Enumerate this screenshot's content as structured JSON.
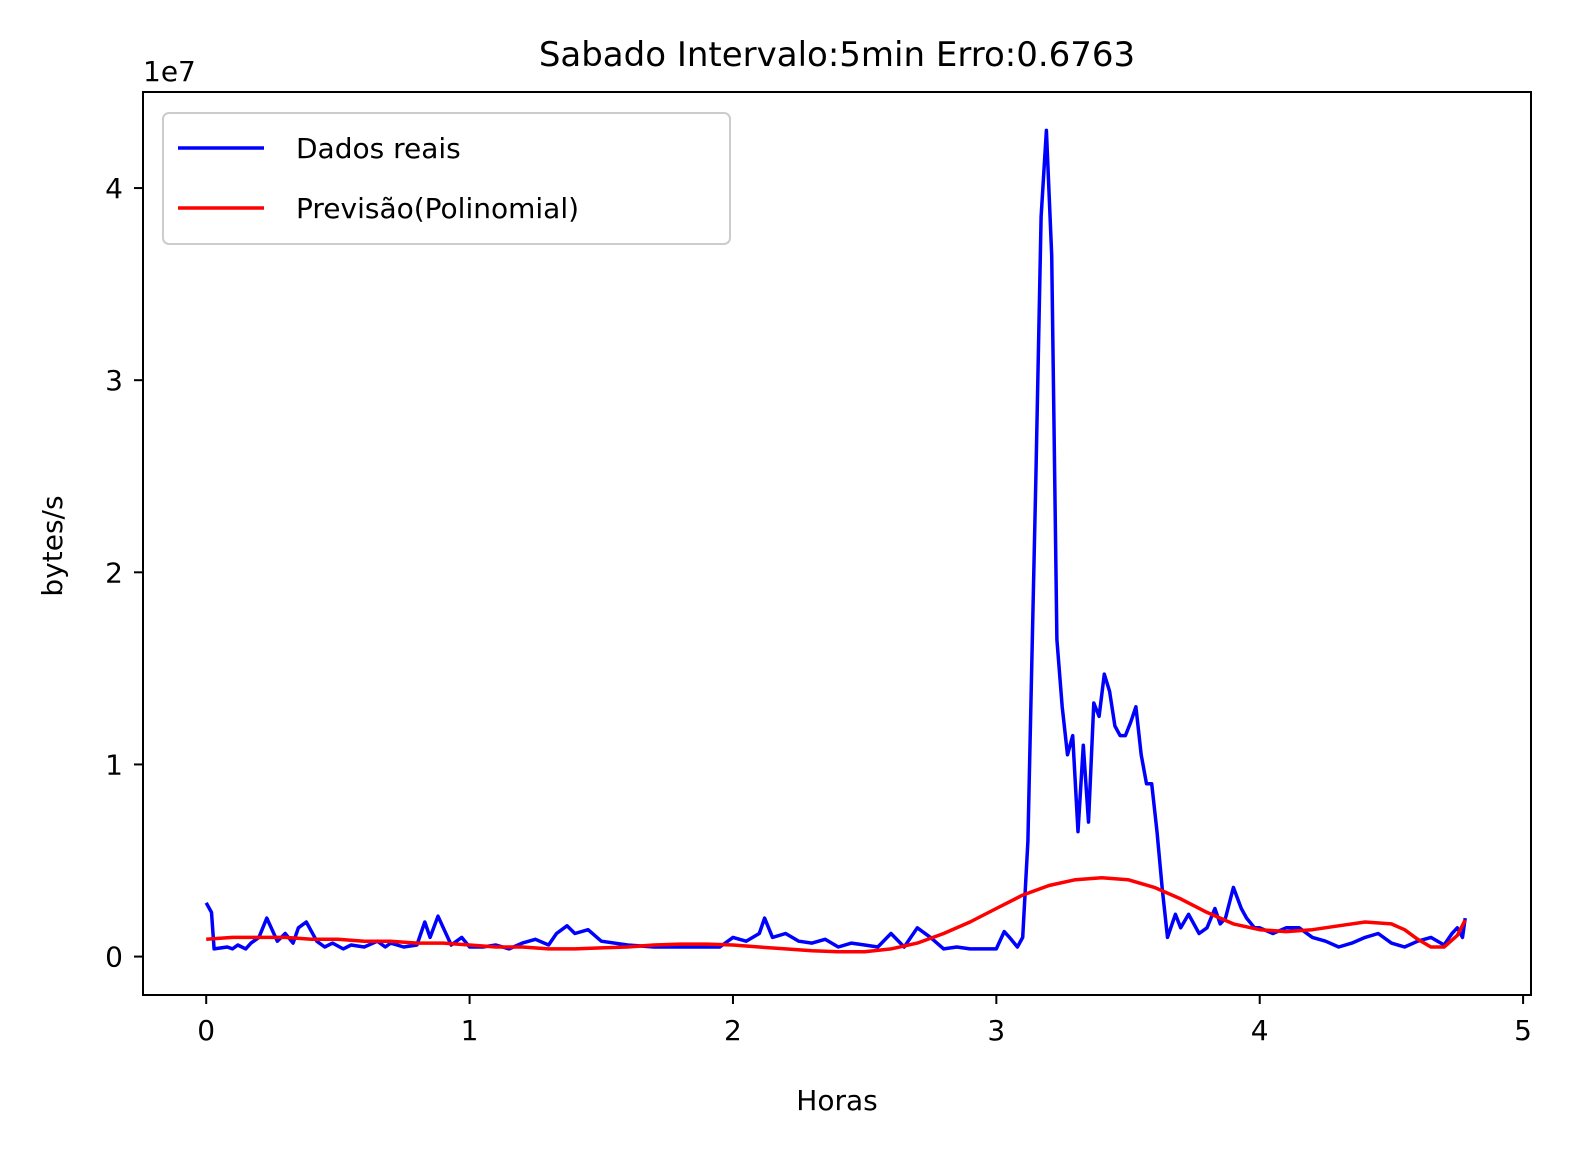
{
  "chart_data": {
    "type": "line",
    "title": "Sabado Intervalo:5min Erro:0.6763",
    "xlabel": "Horas",
    "ylabel": "bytes/s",
    "y_offset_label": "1e7",
    "y_scale": 10000000,
    "xlim": [
      -0.24,
      5.03
    ],
    "ylim": [
      -0.2,
      4.5
    ],
    "xticks": [
      0,
      1,
      2,
      3,
      4,
      5
    ],
    "yticks": [
      0,
      1,
      2,
      3,
      4
    ],
    "grid": false,
    "legend_position": "top-left",
    "series": [
      {
        "name": "Dados reais",
        "color": "#0000ff",
        "x": [
          0.0,
          0.02,
          0.03,
          0.08,
          0.1,
          0.12,
          0.15,
          0.17,
          0.2,
          0.23,
          0.27,
          0.3,
          0.33,
          0.35,
          0.38,
          0.42,
          0.45,
          0.48,
          0.52,
          0.55,
          0.6,
          0.65,
          0.68,
          0.7,
          0.75,
          0.8,
          0.83,
          0.85,
          0.88,
          0.9,
          0.93,
          0.97,
          1.0,
          1.05,
          1.1,
          1.15,
          1.2,
          1.25,
          1.3,
          1.33,
          1.37,
          1.4,
          1.45,
          1.5,
          1.6,
          1.7,
          1.8,
          1.9,
          1.95,
          2.0,
          2.05,
          2.1,
          2.12,
          2.15,
          2.2,
          2.25,
          2.3,
          2.35,
          2.4,
          2.45,
          2.5,
          2.55,
          2.6,
          2.65,
          2.7,
          2.75,
          2.8,
          2.85,
          2.9,
          2.95,
          3.0,
          3.03,
          3.05,
          3.08,
          3.1,
          3.12,
          3.15,
          3.17,
          3.19,
          3.21,
          3.23,
          3.25,
          3.27,
          3.29,
          3.31,
          3.33,
          3.35,
          3.37,
          3.39,
          3.41,
          3.43,
          3.45,
          3.47,
          3.49,
          3.51,
          3.53,
          3.55,
          3.57,
          3.59,
          3.61,
          3.63,
          3.65,
          3.68,
          3.7,
          3.73,
          3.77,
          3.8,
          3.83,
          3.85,
          3.87,
          3.9,
          3.93,
          3.95,
          3.98,
          4.0,
          4.05,
          4.1,
          4.15,
          4.2,
          4.25,
          4.3,
          4.35,
          4.4,
          4.45,
          4.5,
          4.55,
          4.6,
          4.65,
          4.7,
          4.73,
          4.75,
          4.77,
          4.78
        ],
        "values": [
          0.28,
          0.23,
          0.04,
          0.05,
          0.04,
          0.06,
          0.04,
          0.07,
          0.1,
          0.2,
          0.08,
          0.12,
          0.07,
          0.15,
          0.18,
          0.08,
          0.05,
          0.07,
          0.04,
          0.06,
          0.05,
          0.08,
          0.05,
          0.07,
          0.05,
          0.06,
          0.18,
          0.1,
          0.21,
          0.15,
          0.06,
          0.1,
          0.05,
          0.05,
          0.06,
          0.04,
          0.07,
          0.09,
          0.06,
          0.12,
          0.16,
          0.12,
          0.14,
          0.08,
          0.06,
          0.05,
          0.05,
          0.05,
          0.05,
          0.1,
          0.08,
          0.12,
          0.2,
          0.1,
          0.12,
          0.08,
          0.07,
          0.09,
          0.05,
          0.07,
          0.06,
          0.05,
          0.12,
          0.05,
          0.15,
          0.1,
          0.04,
          0.05,
          0.04,
          0.04,
          0.04,
          0.13,
          0.1,
          0.05,
          0.1,
          0.6,
          2.5,
          3.85,
          4.3,
          3.65,
          1.65,
          1.3,
          1.05,
          1.15,
          0.65,
          1.1,
          0.7,
          1.32,
          1.25,
          1.47,
          1.38,
          1.2,
          1.15,
          1.15,
          1.22,
          1.3,
          1.05,
          0.9,
          0.9,
          0.65,
          0.35,
          0.1,
          0.22,
          0.15,
          0.22,
          0.12,
          0.15,
          0.25,
          0.17,
          0.2,
          0.36,
          0.25,
          0.2,
          0.15,
          0.15,
          0.12,
          0.15,
          0.15,
          0.1,
          0.08,
          0.05,
          0.07,
          0.1,
          0.12,
          0.07,
          0.05,
          0.08,
          0.1,
          0.06,
          0.12,
          0.15,
          0.1,
          0.2
        ]
      },
      {
        "name": "Previsão(Polinomial)",
        "color": "#ff0000",
        "x": [
          0.0,
          0.1,
          0.2,
          0.3,
          0.4,
          0.5,
          0.6,
          0.7,
          0.8,
          0.9,
          1.0,
          1.1,
          1.2,
          1.3,
          1.4,
          1.5,
          1.6,
          1.7,
          1.8,
          1.9,
          2.0,
          2.1,
          2.2,
          2.3,
          2.4,
          2.5,
          2.6,
          2.7,
          2.8,
          2.9,
          3.0,
          3.1,
          3.2,
          3.3,
          3.4,
          3.5,
          3.6,
          3.7,
          3.8,
          3.9,
          4.0,
          4.1,
          4.2,
          4.3,
          4.4,
          4.5,
          4.55,
          4.6,
          4.65,
          4.7,
          4.75,
          4.78
        ],
        "values": [
          0.09,
          0.1,
          0.1,
          0.1,
          0.09,
          0.09,
          0.08,
          0.08,
          0.07,
          0.07,
          0.06,
          0.05,
          0.05,
          0.04,
          0.04,
          0.045,
          0.05,
          0.06,
          0.065,
          0.065,
          0.06,
          0.05,
          0.04,
          0.03,
          0.025,
          0.025,
          0.04,
          0.07,
          0.12,
          0.18,
          0.25,
          0.32,
          0.37,
          0.4,
          0.41,
          0.4,
          0.36,
          0.3,
          0.23,
          0.17,
          0.14,
          0.13,
          0.14,
          0.16,
          0.18,
          0.17,
          0.14,
          0.09,
          0.05,
          0.05,
          0.11,
          0.19
        ]
      }
    ]
  }
}
